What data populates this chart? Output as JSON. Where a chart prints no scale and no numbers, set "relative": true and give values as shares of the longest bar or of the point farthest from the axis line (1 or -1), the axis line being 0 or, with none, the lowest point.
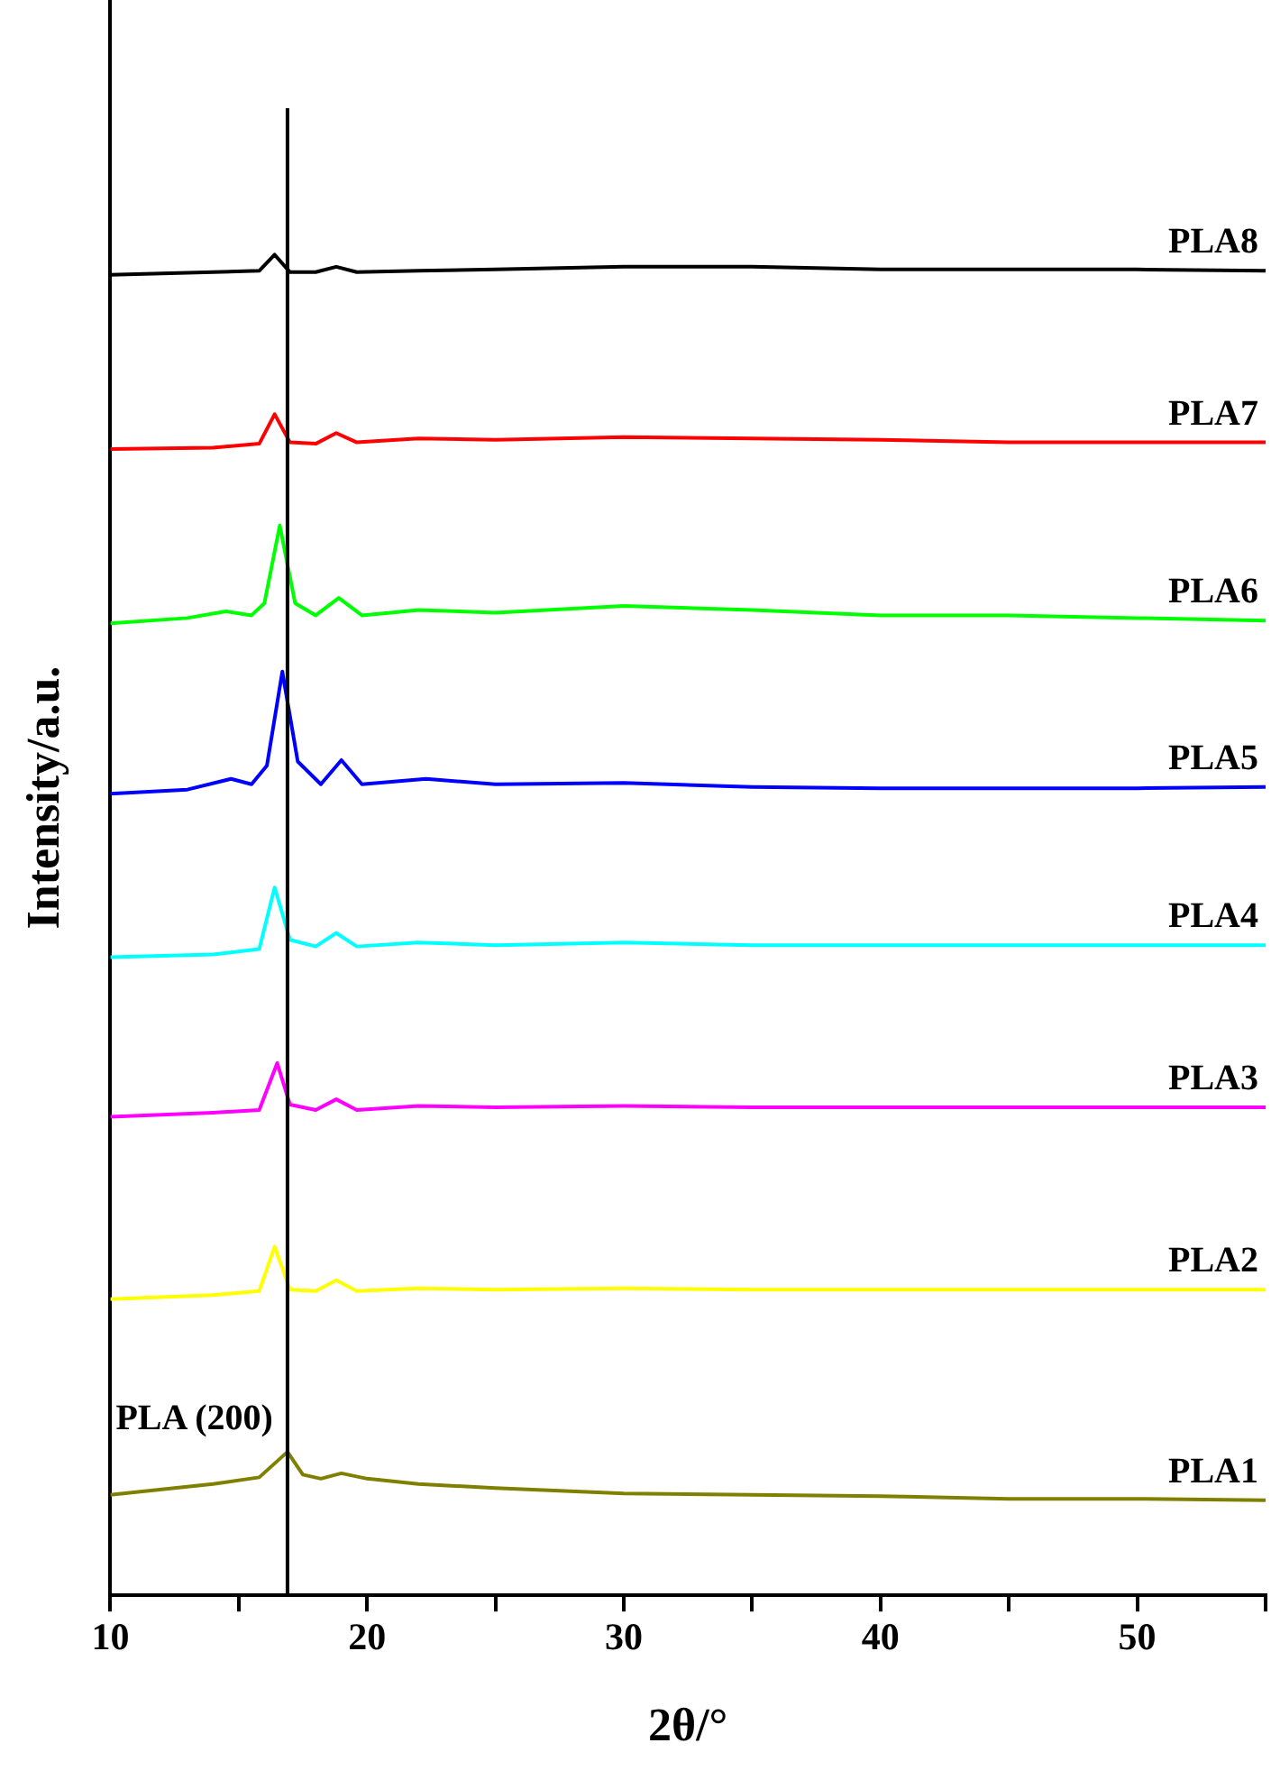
{
  "chart_data": {
    "type": "line",
    "xlabel": "2θ/°",
    "ylabel": "Intensity/a.u.",
    "relative": true,
    "legend": false,
    "grid": false,
    "marker": "none",
    "line_style": "solid",
    "xlim": [
      10,
      55
    ],
    "xticks": [
      10,
      {
        "value": 15,
        "label": null
      },
      20,
      {
        "value": 25,
        "label": null
      },
      30,
      {
        "value": 35,
        "label": null
      },
      40,
      {
        "value": 45,
        "label": null
      },
      50,
      {
        "value": 55,
        "label": null
      }
    ],
    "ref_lines": [
      {
        "axis": "x",
        "value": 16.9,
        "label": "PLA (200)",
        "color": "#000000"
      }
    ],
    "series": [
      {
        "name": "PLA8",
        "color": "#000000",
        "x": [
          10,
          14,
          15.8,
          16.4,
          17.0,
          18.0,
          18.8,
          19.6,
          22,
          25,
          30,
          35,
          40,
          45,
          50,
          55
        ],
        "values": [
          0.985,
          0.987,
          0.988,
          1.0,
          0.987,
          0.987,
          0.991,
          0.987,
          0.988,
          0.989,
          0.991,
          0.991,
          0.989,
          0.989,
          0.989,
          0.988
        ]
      },
      {
        "name": "PLA7",
        "color": "#ff0000",
        "x": [
          10,
          14,
          15.8,
          16.4,
          17.0,
          18.0,
          18.8,
          19.6,
          22,
          25,
          30,
          35,
          40,
          45,
          50,
          55
        ],
        "values": [
          0.855,
          0.856,
          0.859,
          0.881,
          0.86,
          0.859,
          0.867,
          0.86,
          0.863,
          0.862,
          0.864,
          0.863,
          0.862,
          0.86,
          0.86,
          0.86
        ]
      },
      {
        "name": "PLA6",
        "color": "#00ff00",
        "x": [
          10,
          13,
          14.5,
          15.5,
          16.0,
          16.6,
          17.2,
          18.0,
          18.9,
          19.8,
          22,
          25,
          30,
          35,
          40,
          45,
          50,
          55
        ],
        "values": [
          0.725,
          0.729,
          0.734,
          0.731,
          0.74,
          0.798,
          0.74,
          0.731,
          0.744,
          0.731,
          0.735,
          0.733,
          0.738,
          0.735,
          0.731,
          0.731,
          0.729,
          0.727
        ]
      },
      {
        "name": "PLA5",
        "color": "#0000ff",
        "x": [
          10,
          13,
          14.7,
          15.5,
          16.1,
          16.7,
          17.3,
          18.2,
          19.0,
          19.8,
          22.3,
          25,
          30,
          35,
          40,
          45,
          50,
          55
        ],
        "values": [
          0.598,
          0.601,
          0.609,
          0.605,
          0.619,
          0.689,
          0.622,
          0.605,
          0.623,
          0.605,
          0.609,
          0.605,
          0.606,
          0.603,
          0.602,
          0.602,
          0.602,
          0.603
        ]
      },
      {
        "name": "PLA4",
        "color": "#00ffff",
        "x": [
          10,
          14,
          15.8,
          16.4,
          17.0,
          18.0,
          18.8,
          19.6,
          22,
          25,
          30,
          35,
          40,
          45,
          50,
          55
        ],
        "values": [
          0.476,
          0.478,
          0.482,
          0.528,
          0.489,
          0.484,
          0.494,
          0.484,
          0.487,
          0.485,
          0.487,
          0.485,
          0.485,
          0.485,
          0.485,
          0.485
        ]
      },
      {
        "name": "PLA3",
        "color": "#ff00ff",
        "x": [
          10,
          14,
          15.8,
          16.5,
          17.0,
          18.0,
          18.8,
          19.6,
          22,
          25,
          30,
          35,
          40,
          45,
          50,
          55
        ],
        "values": [
          0.357,
          0.36,
          0.362,
          0.397,
          0.366,
          0.362,
          0.37,
          0.362,
          0.365,
          0.364,
          0.365,
          0.364,
          0.364,
          0.364,
          0.364,
          0.364
        ]
      },
      {
        "name": "PLA2",
        "color": "#ffff00",
        "x": [
          10,
          14,
          15.8,
          16.4,
          17.0,
          18.0,
          18.8,
          19.6,
          22,
          25,
          30,
          35,
          40,
          45,
          50,
          55
        ],
        "values": [
          0.221,
          0.224,
          0.227,
          0.26,
          0.228,
          0.227,
          0.235,
          0.227,
          0.229,
          0.228,
          0.229,
          0.228,
          0.228,
          0.228,
          0.228,
          0.228
        ]
      },
      {
        "name": "PLA1",
        "color": "#808000",
        "x": [
          10,
          12,
          14,
          15.8,
          16.9,
          17.5,
          18.2,
          19.0,
          20,
          22,
          25,
          30,
          35,
          40,
          45,
          50,
          55
        ],
        "values": [
          0.075,
          0.079,
          0.083,
          0.088,
          0.107,
          0.09,
          0.087,
          0.091,
          0.087,
          0.083,
          0.08,
          0.076,
          0.075,
          0.074,
          0.072,
          0.072,
          0.071
        ]
      }
    ]
  }
}
